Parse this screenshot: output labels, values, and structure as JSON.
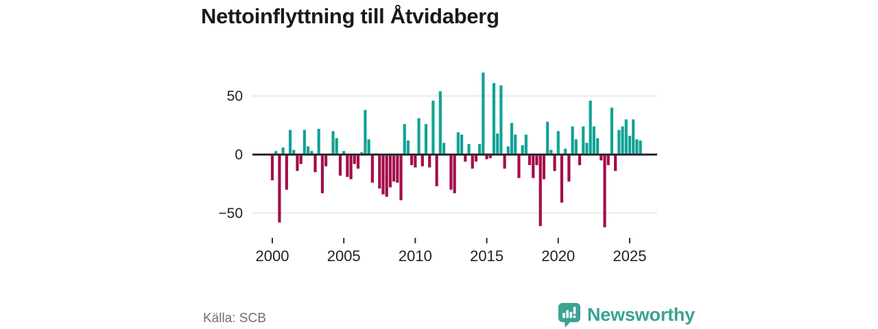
{
  "title": "Nettoinflyttning till Åtvidaberg",
  "source": "Källa: SCB",
  "branding": {
    "name": "Newsworthy",
    "icon": "newsworthy-speech-bubble-chart-icon",
    "color": "#3ba294"
  },
  "colors": {
    "positive_bar": "#12a296",
    "negative_bar": "#a30c4b",
    "gridline": "#dedede",
    "zero_line": "#2d2d2d",
    "axis_text": "#222222",
    "title_text": "#1a1a1a",
    "source_text": "#6f6f6f"
  },
  "chart_data": {
    "type": "bar",
    "title": "Nettoinflyttning till Åtvidaberg",
    "x_start": "2000 Q1",
    "x_end": "2025 Q4",
    "frequency": "quarterly",
    "values": [
      -22,
      3,
      -58,
      6,
      -30,
      21,
      4,
      -14,
      -8,
      21,
      7,
      3,
      -15,
      22,
      -33,
      -10,
      0,
      20,
      14,
      -18,
      3,
      -19,
      -21,
      -8,
      -12,
      2,
      38,
      13,
      -24,
      1,
      -29,
      -34,
      -36,
      -28,
      -23,
      -24,
      -39,
      26,
      12,
      -9,
      -11,
      31,
      -10,
      26,
      -11,
      46,
      -27,
      54,
      10,
      0,
      -30,
      -33,
      19,
      17,
      -6,
      9,
      -12,
      -6,
      9,
      70,
      -4,
      -3,
      61,
      18,
      59,
      -12,
      7,
      27,
      17,
      -20,
      8,
      17,
      -9,
      -20,
      -9,
      -61,
      -21,
      28,
      4,
      -14,
      20,
      -41,
      5,
      -23,
      24,
      13,
      -9,
      24,
      10,
      46,
      24,
      14,
      -5,
      -62,
      -9,
      40,
      -14,
      21,
      24,
      30,
      16,
      30,
      13,
      12
    ],
    "xlabel": "",
    "ylabel": "",
    "x_axis": {
      "tick_labels": [
        "2000",
        "2005",
        "2010",
        "2015",
        "2020",
        "2025"
      ],
      "tick_years": [
        2000,
        2005,
        2010,
        2015,
        2020,
        2025
      ]
    },
    "y_axis": {
      "tick_labels": [
        "50",
        "0",
        "−50"
      ],
      "tick_values": [
        50,
        0,
        -50
      ],
      "gridlines": [
        50,
        -50
      ]
    },
    "ylim": [
      -70,
      75
    ],
    "grid": "horizontal-only",
    "legend": "none"
  }
}
